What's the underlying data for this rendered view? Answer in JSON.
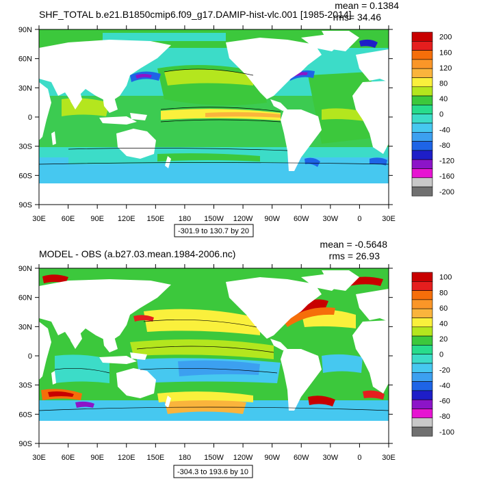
{
  "panels": [
    {
      "title": "SHF_TOTAL b.e21.B1850cmip6.f09_g17.DAMIP-hist-vlc.001 [1985-2014]",
      "mean_text": "mean = 0.1384",
      "rms_text": "rms= 34.46",
      "range_text": "-301.9 to 130.7 by 20",
      "colorbar_labels": [
        "200",
        "160",
        "120",
        "80",
        "40",
        "0",
        "-40",
        "-80",
        "-120",
        "-160",
        "-200"
      ]
    },
    {
      "title": "MODEL - OBS (a.b27.03.mean.1984-2006.nc)",
      "mean_text": "mean = -0.5648",
      "rms_text": "rms = 26.93",
      "range_text": "-304.3 to 193.6 by 10",
      "colorbar_labels": [
        "100",
        "80",
        "60",
        "40",
        "20",
        "0",
        "-20",
        "-40",
        "-60",
        "-80",
        "-100"
      ]
    }
  ],
  "lat_labels": [
    "90N",
    "60N",
    "30N",
    "0",
    "30S",
    "60S",
    "90S"
  ],
  "lon_labels": [
    "30E",
    "60E",
    "90E",
    "120E",
    "150E",
    "180",
    "150W",
    "120W",
    "90W",
    "60W",
    "30W",
    "0",
    "30E"
  ],
  "colorbar_colors": [
    "#c80000",
    "#e51e1e",
    "#f56e0a",
    "#fa9628",
    "#fab43c",
    "#faf03c",
    "#b4e61e",
    "#3cc83c",
    "#28dc8c",
    "#3cdcc8",
    "#46c8f0",
    "#3ca0f0",
    "#1e64e6",
    "#1e1ec8",
    "#8c14c8",
    "#e614d2",
    "#c8c8c8",
    "#707070"
  ],
  "map_colors": {
    "land": "#ffffff",
    "teal": "#3cdcc8",
    "green": "#46c850",
    "light_green": "#b4e61e",
    "yellow": "#faf03c",
    "orange": "#fab43c",
    "dark_orange": "#f56e0a",
    "red": "#c80000",
    "cyan": "#46c8f0",
    "blue": "#1e64e6",
    "purple": "#8c14c8",
    "mint": "#28dc8c"
  }
}
